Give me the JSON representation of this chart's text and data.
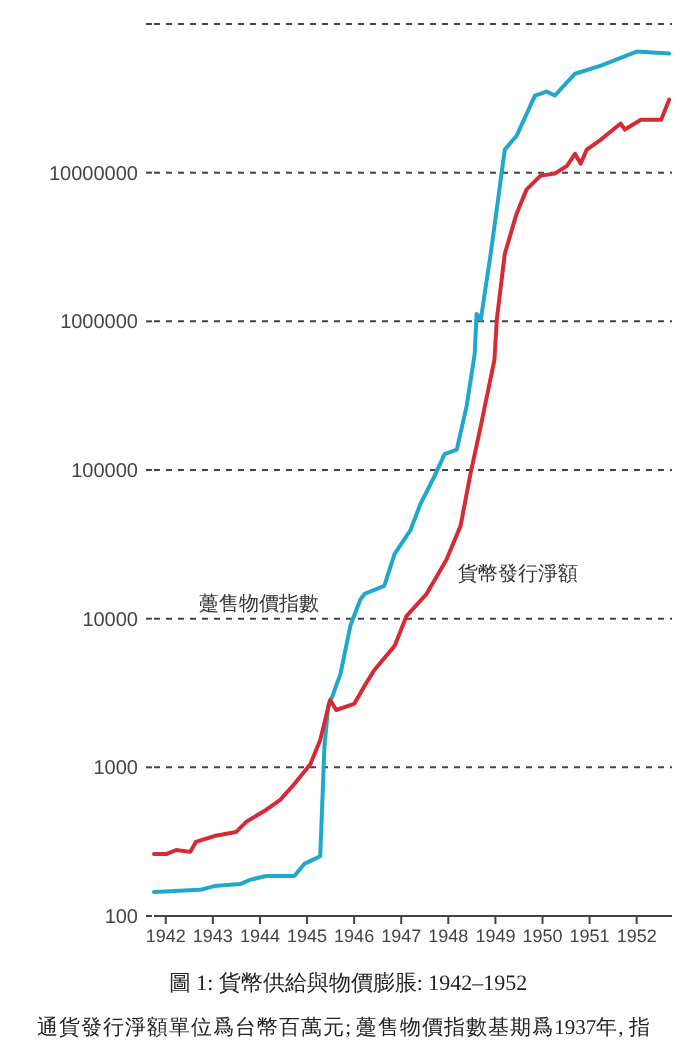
{
  "chart_data": {
    "type": "line",
    "title": "圖 1: 貨幣供給與物價膨脹: 1942–1952",
    "annotations": [
      "通貨發行淨額單位爲台幣百萬元; 躉售物價指數基期爲1937年, 指"
    ],
    "log": "y",
    "grid": "y",
    "legend": false,
    "marker": "none",
    "line_style": "solid",
    "xlim": [
      1941.75,
      1952.75
    ],
    "xticks": [
      1942,
      1943,
      1944,
      1945,
      1946,
      1947,
      1948,
      1949,
      1950,
      1951,
      1952
    ],
    "ylim": [
      100,
      100000000
    ],
    "yticks": [
      100,
      1000,
      10000,
      100000,
      1000000,
      10000000,
      {
        "value": 100000000,
        "label": null
      }
    ],
    "series": [
      {
        "name": "躉售物價指數",
        "color": "#1fa8cc",
        "x": [
          1941.75,
          1942.73,
          1943.03,
          1943.58,
          1943.79,
          1944.13,
          1944.73,
          1944.94,
          1945.2,
          1945.28,
          1945.37,
          1945.45,
          1945.54,
          1945.71,
          1945.92,
          1946.13,
          1946.22,
          1946.43,
          1946.64,
          1946.86,
          1947.2,
          1947.41,
          1947.71,
          1947.92,
          1948.18,
          1948.39,
          1948.56,
          1948.6,
          1948.69,
          1948.9,
          1949.2,
          1949.45,
          1949.84,
          1950.09,
          1950.26,
          1950.69,
          1951.24,
          1952.0,
          1952.69
        ],
        "values": [
          145,
          150,
          159,
          164,
          175,
          186,
          186,
          224,
          245,
          253,
          1390,
          2590,
          3020,
          4250,
          8950,
          13400,
          14700,
          15600,
          16600,
          27300,
          39600,
          59300,
          91400,
          128000,
          137000,
          270000,
          605000,
          1120000,
          1030000,
          2850000,
          14300000,
          17700000,
          33000000,
          35100000,
          33000000,
          46300000,
          52500000,
          65200000,
          63200000
        ]
      },
      {
        "name": "貨幣發行淨額",
        "color": "#d62b35",
        "x": [
          1941.75,
          1942.01,
          1942.22,
          1942.52,
          1942.64,
          1943.03,
          1943.49,
          1943.71,
          1944.13,
          1944.43,
          1944.73,
          1945.07,
          1945.28,
          1945.49,
          1945.62,
          1946.0,
          1946.22,
          1946.43,
          1946.86,
          1947.11,
          1947.54,
          1947.96,
          1948.26,
          1948.47,
          1948.69,
          1948.98,
          1949.03,
          1949.2,
          1949.45,
          1949.66,
          1949.96,
          1950.26,
          1950.52,
          1950.69,
          1950.81,
          1950.94,
          1951.24,
          1951.66,
          1951.75,
          1952.09,
          1952.52,
          1952.69
        ],
        "values": [
          261,
          261,
          278,
          270,
          315,
          345,
          367,
          430,
          517,
          604,
          773,
          1050,
          1530,
          2840,
          2430,
          2670,
          3530,
          4520,
          6560,
          10400,
          14700,
          24900,
          42100,
          94200,
          198000,
          552000,
          1030000,
          2850000,
          5300000,
          7690000,
          9550000,
          9850000,
          11100000,
          13400000,
          11500000,
          14300000,
          16700000,
          21400000,
          19500000,
          22700000,
          22700000,
          31000000
        ]
      }
    ]
  }
}
